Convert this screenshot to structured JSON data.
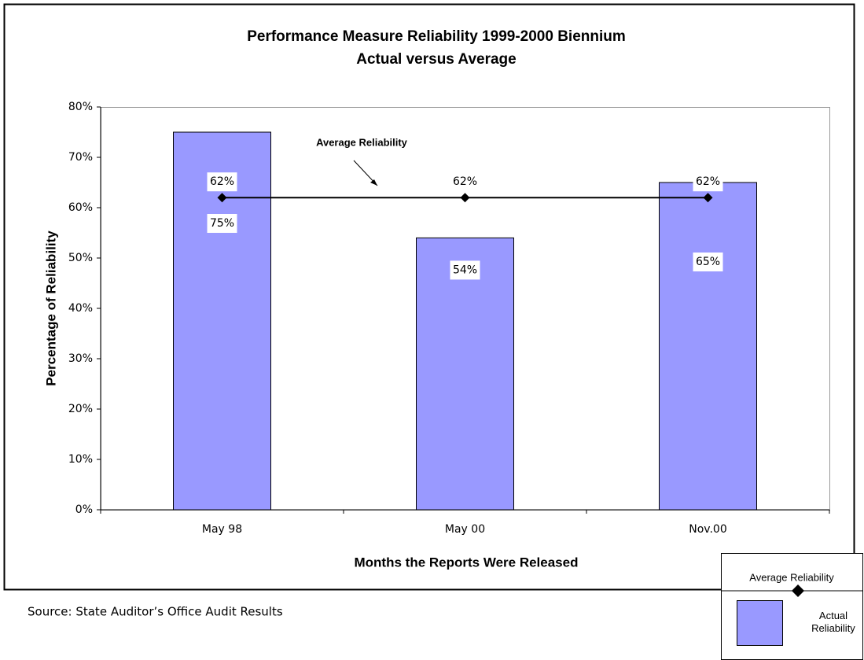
{
  "chart_data": {
    "type": "bar",
    "title": "Performance Measure Reliability 1999-2000 Biennium",
    "subtitle": "Actual versus Average",
    "x_label": "Months the Reports Were Released",
    "y_label": "Percentage of Reliability",
    "categories": [
      "May 98",
      "May 00",
      "Nov.00"
    ],
    "series": [
      {
        "name": "Actual Reliability",
        "type": "bar",
        "color": "#9999ff",
        "values": [
          75,
          54,
          65
        ],
        "value_labels": [
          "75%",
          "54%",
          "65%"
        ]
      },
      {
        "name": "Average Reliability",
        "type": "line",
        "color": "#000000",
        "values": [
          62,
          62,
          62
        ],
        "value_labels": [
          "62%",
          "62%",
          "62%"
        ]
      }
    ],
    "ylim": [
      0,
      80
    ],
    "yticks": [
      {
        "value": 0,
        "label": "0%"
      },
      {
        "value": 10,
        "label": "10%"
      },
      {
        "value": 20,
        "label": "20%"
      },
      {
        "value": 30,
        "label": "30%"
      },
      {
        "value": 40,
        "label": "40%"
      },
      {
        "value": 50,
        "label": "50%"
      },
      {
        "value": 60,
        "label": "60%"
      },
      {
        "value": 70,
        "label": "70%"
      },
      {
        "value": 80,
        "label": "80%"
      }
    ],
    "annotation": "Average Reliability",
    "source": "Source: State Auditor’s Office Audit Results"
  }
}
